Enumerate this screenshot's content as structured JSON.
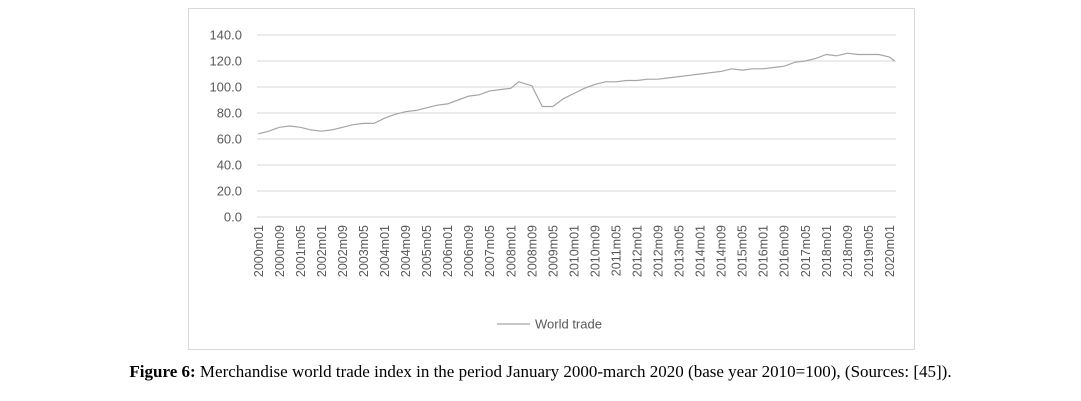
{
  "chart_data": {
    "type": "line",
    "title": "",
    "xlabel": "",
    "ylabel": "",
    "ylim": [
      0,
      140
    ],
    "yticks": [
      "0.0",
      "20.0",
      "40.0",
      "60.0",
      "80.0",
      "100.0",
      "120.0",
      "140.0"
    ],
    "grid": true,
    "legend_position": "bottom",
    "xtick_labels": [
      "2000m01",
      "2000m09",
      "2001m05",
      "2002m01",
      "2002m09",
      "2003m05",
      "2004m01",
      "2004m09",
      "2005m05",
      "2006m01",
      "2006m09",
      "2007m05",
      "2008m01",
      "2008m09",
      "2009m05",
      "2010m01",
      "2010m09",
      "2011m05",
      "2012m01",
      "2012m09",
      "2013m05",
      "2014m01",
      "2014m09",
      "2015m05",
      "2016m01",
      "2016m09",
      "2017m05",
      "2018m01",
      "2018m09",
      "2019m05",
      "2020m01"
    ],
    "x": [
      "2000m01",
      "2000m05",
      "2000m09",
      "2001m01",
      "2001m05",
      "2001m09",
      "2002m01",
      "2002m05",
      "2002m09",
      "2003m01",
      "2003m05",
      "2003m09",
      "2004m01",
      "2004m05",
      "2004m09",
      "2005m01",
      "2005m05",
      "2005m09",
      "2006m01",
      "2006m05",
      "2006m09",
      "2007m01",
      "2007m05",
      "2007m09",
      "2008m01",
      "2008m04",
      "2008m09",
      "2009m01",
      "2009m05",
      "2009m09",
      "2010m01",
      "2010m05",
      "2010m09",
      "2011m01",
      "2011m05",
      "2011m09",
      "2012m01",
      "2012m05",
      "2012m09",
      "2013m01",
      "2013m05",
      "2013m09",
      "2014m01",
      "2014m05",
      "2014m09",
      "2015m01",
      "2015m05",
      "2015m09",
      "2016m01",
      "2016m05",
      "2016m09",
      "2017m01",
      "2017m05",
      "2017m09",
      "2018m01",
      "2018m05",
      "2018m09",
      "2019m01",
      "2019m05",
      "2019m09",
      "2020m01",
      "2020m03"
    ],
    "series": [
      {
        "name": "World trade",
        "color": "#a5a5a5",
        "values": [
          64,
          66,
          69,
          70,
          69,
          67,
          66,
          67,
          69,
          71,
          72,
          72,
          76,
          79,
          81,
          82,
          84,
          86,
          87,
          90,
          93,
          94,
          97,
          98,
          99,
          104,
          101,
          85,
          85,
          91,
          95,
          99,
          102,
          104,
          104,
          105,
          105,
          106,
          106,
          107,
          108,
          109,
          110,
          111,
          112,
          114,
          113,
          114,
          114,
          115,
          116,
          119,
          120,
          122,
          125,
          124,
          126,
          125,
          125,
          125,
          123,
          120
        ]
      }
    ]
  },
  "caption": {
    "label": "Figure 6:",
    "text": " Merchandise world trade index in the period January 2000-march 2020 (base year 2010=100), (Sources: [45])."
  }
}
